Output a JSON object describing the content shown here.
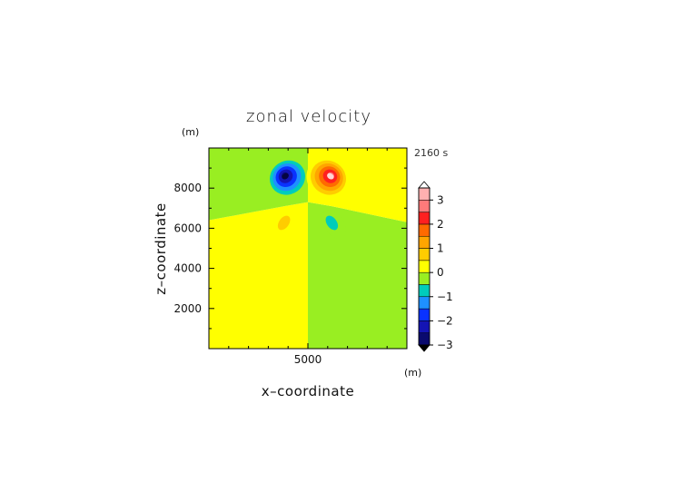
{
  "chart_data": {
    "type": "heatmap",
    "title": "zonal velocity",
    "xlabel": "x–coordinate",
    "ylabel": "z–coordinate",
    "x_unit": "(m)",
    "y_unit": "(m)",
    "time_label": "2160 s",
    "xlim": [
      0,
      10000
    ],
    "ylim": [
      0,
      10000
    ],
    "x_ticks": [
      5000
    ],
    "y_ticks": [
      2000,
      4000,
      6000,
      8000
    ],
    "colorbar": {
      "ticks": [
        -3,
        -2,
        -1,
        0,
        1,
        2,
        3
      ],
      "extend": "both",
      "levels": [
        {
          "min": -3.0,
          "max": -2.5,
          "color": "#0a0a6e"
        },
        {
          "min": -2.5,
          "max": -2.0,
          "color": "#1414b4"
        },
        {
          "min": -2.0,
          "max": -1.5,
          "color": "#0a32ff"
        },
        {
          "min": -1.5,
          "max": -1.0,
          "color": "#1e90ff"
        },
        {
          "min": -1.0,
          "max": -0.5,
          "color": "#00ccbb"
        },
        {
          "min": -0.5,
          "max": 0.0,
          "color": "#99ee22"
        },
        {
          "min": 0.0,
          "max": 0.5,
          "color": "#ffff00"
        },
        {
          "min": 0.5,
          "max": 1.0,
          "color": "#ffcc00"
        },
        {
          "min": 1.0,
          "max": 1.5,
          "color": "#ffa500"
        },
        {
          "min": 1.5,
          "max": 2.0,
          "color": "#ff6a00"
        },
        {
          "min": 2.0,
          "max": 2.5,
          "color": "#ff2020"
        },
        {
          "min": 2.5,
          "max": 3.0,
          "color": "#ff7a7a"
        },
        {
          "min": 3.0,
          "max": 3.5,
          "color": "#ffb0b0"
        }
      ],
      "under_color": "#000000",
      "over_color": "#ffffff"
    },
    "field": {
      "background": [
        {
          "region": "lower-left (x < 5000, below tilted interface)",
          "value": 0.25
        },
        {
          "region": "lower-right (x > 5000, below tilted interface)",
          "value": -0.25
        },
        {
          "region": "upper-left (above interface)",
          "value": -0.25
        },
        {
          "region": "upper-right (above interface)",
          "value": 0.25
        }
      ],
      "interface_points": [
        {
          "x": 0,
          "z": 6400
        },
        {
          "x": 3800,
          "z": 7100
        },
        {
          "x": 5000,
          "z": 7300
        },
        {
          "x": 6200,
          "z": 7100
        },
        {
          "x": 10000,
          "z": 6300
        }
      ],
      "features": [
        {
          "name": "upper-left negative cell",
          "x": 4000,
          "z": 8500,
          "peak": -3.0,
          "halo_rx": 1100,
          "halo_rz": 1000
        },
        {
          "name": "upper-right positive cell",
          "x": 6000,
          "z": 8500,
          "peak": 3.0,
          "halo_rx": 1100,
          "halo_rz": 1000
        },
        {
          "name": "lower-left positive lobe",
          "x": 3700,
          "z": 6200,
          "peak": 0.75,
          "halo_rx": 500,
          "halo_rz": 800
        },
        {
          "name": "lower-right negative lobe",
          "x": 6300,
          "z": 6200,
          "peak": -0.75,
          "halo_rx": 500,
          "halo_rz": 800
        }
      ]
    }
  }
}
